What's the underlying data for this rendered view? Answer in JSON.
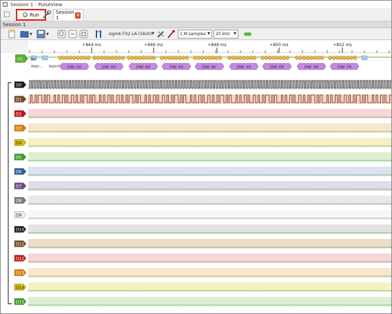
{
  "window": {
    "title": "Session 1 - PulseView"
  },
  "tabs": {
    "run_label": "Run",
    "session_tab_label": "Session 1",
    "close_glyph": "×"
  },
  "session": {
    "label": "Session 1"
  },
  "toolbar": {
    "device": "sigrok FX2 LA (16ch)",
    "samples": "1 M samples",
    "samplerate": "20 kHz"
  },
  "ruler": {
    "ticks": [
      {
        "label": "+844 ms"
      },
      {
        "label": "+846 ms"
      },
      {
        "label": "+848 ms"
      },
      {
        "label": "+850 ms"
      },
      {
        "label": "+852 ms"
      }
    ]
  },
  "decoder": {
    "name": "I²C",
    "color": "#5cab3a",
    "lane_labels": [
      "Bit",
      "Addr...",
      "Addr/Data"
    ],
    "data_words": [
      {
        "text": "DW: 10"
      },
      {
        "text": "DW: 00"
      },
      {
        "text": "DW: 60"
      },
      {
        "text": "DW: 02"
      },
      {
        "text": "DW: AC"
      },
      {
        "text": "DW: 10"
      },
      {
        "text": "DW: 0E"
      },
      {
        "text": "DW: 94"
      },
      {
        "text": "DW: 74"
      }
    ]
  },
  "channels": [
    {
      "name": "D0",
      "color": "#1a1a1a",
      "bg": "#e4e4e4"
    },
    {
      "name": "D1",
      "color": "#7a4a1e",
      "bg": "#eddcc8"
    },
    {
      "name": "D2",
      "color": "#cc1111",
      "bg": "#f6d6d6"
    },
    {
      "name": "D3",
      "color": "#e07a00",
      "bg": "#f8e7cc"
    },
    {
      "name": "D4",
      "color": "#d4c300",
      "bg": "#f5f1c6"
    },
    {
      "name": "D5",
      "color": "#3f9e28",
      "bg": "#dcefd2"
    },
    {
      "name": "D6",
      "color": "#2f5f9f",
      "bg": "#dbe3ef"
    },
    {
      "name": "D7",
      "color": "#6a4a8a",
      "bg": "#e2dbea"
    },
    {
      "name": "D8",
      "color": "#7a7a7a",
      "bg": "#e8e8e8"
    },
    {
      "name": "D9",
      "color": "#efefef",
      "bg": "#f6f6f6"
    },
    {
      "name": "D10",
      "color": "#1a1a1a",
      "bg": "#e2e2e2"
    },
    {
      "name": "D11",
      "color": "#7a4a1e",
      "bg": "#ecdcc8"
    },
    {
      "name": "D12",
      "color": "#cc1111",
      "bg": "#f6d6d6"
    },
    {
      "name": "D13",
      "color": "#e07a00",
      "bg": "#f8e7cc"
    },
    {
      "name": "D14",
      "color": "#d4c300",
      "bg": "#f5f1c6"
    },
    {
      "name": "D15",
      "color": "#3f9e28",
      "bg": "#dcefd2"
    }
  ]
}
